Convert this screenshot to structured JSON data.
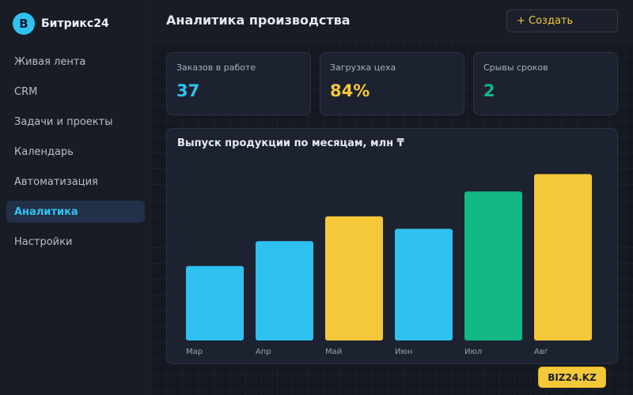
{
  "brand": {
    "logo_letter": "B",
    "name": "Битрикс24",
    "accent": "#2fc2f0"
  },
  "sidebar": {
    "items": [
      {
        "label": "Живая лента",
        "active": false
      },
      {
        "label": "CRM",
        "active": false
      },
      {
        "label": "Задачи и проекты",
        "active": false
      },
      {
        "label": "Календарь",
        "active": false
      },
      {
        "label": "Автоматизация",
        "active": false
      },
      {
        "label": "Аналитика",
        "active": true
      },
      {
        "label": "Настройки",
        "active": false
      }
    ]
  },
  "header": {
    "title": "Аналитика производства",
    "create_label": "+ Создать"
  },
  "kpis": [
    {
      "label": "Заказов в работе",
      "value": "37",
      "color": "#2fc2f0"
    },
    {
      "label": "Загрузка цеха",
      "value": "84%",
      "color": "#f5c83a"
    },
    {
      "label": "Срывы сроков",
      "value": "2",
      "color": "#12b886"
    }
  ],
  "chart_data": {
    "type": "bar",
    "title": "Выпуск продукции по месяцам, млн ₸",
    "categories": [
      "Мар",
      "Апр",
      "Май",
      "Июн",
      "Июл",
      "Авг"
    ],
    "values": [
      30,
      40,
      50,
      45,
      60,
      67
    ],
    "colors": [
      "#2fc2f0",
      "#2fc2f0",
      "#f5c83a",
      "#2fc2f0",
      "#12b886",
      "#f5c83a"
    ],
    "ylim": [
      0,
      70
    ],
    "grid": false,
    "xlabel": "",
    "ylabel": ""
  },
  "watermark": "BIZ24.KZ"
}
